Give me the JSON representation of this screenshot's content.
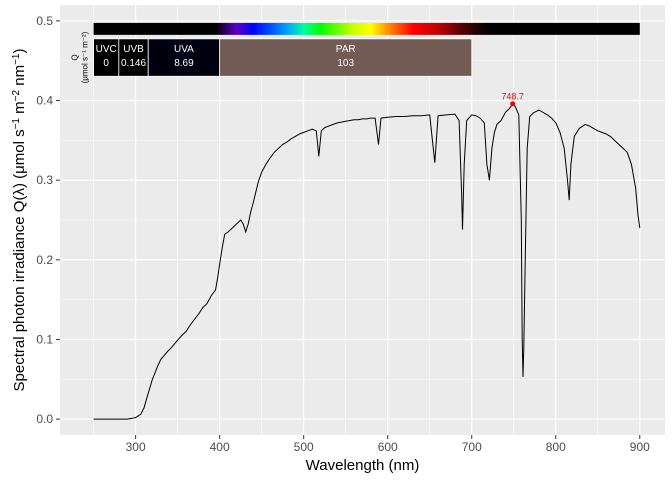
{
  "chart_data": {
    "type": "line",
    "title": "",
    "xlabel": "Wavelength (nm)",
    "ylabel": {
      "main": "Spectral  photon  irradiance  Q(λ)  (μmol s",
      "exp1": "−1",
      "mid": " m",
      "exp2": "−2",
      "mid2": " nm",
      "exp3": "−1",
      "close": ")"
    },
    "xlim": [
      210,
      930
    ],
    "ylim": [
      -0.02,
      0.52
    ],
    "x_ticks": [
      {
        "value": 300,
        "label": "300"
      },
      {
        "value": 400,
        "label": "400"
      },
      {
        "value": 500,
        "label": "500"
      },
      {
        "value": 600,
        "label": "600"
      },
      {
        "value": 700,
        "label": "700"
      },
      {
        "value": 800,
        "label": "800"
      },
      {
        "value": 900,
        "label": "900"
      }
    ],
    "y_ticks": [
      {
        "value": 0.0,
        "label": "0.0"
      },
      {
        "value": 0.1,
        "label": "0.1"
      },
      {
        "value": 0.2,
        "label": "0.2"
      },
      {
        "value": 0.3,
        "label": "0.3"
      },
      {
        "value": 0.4,
        "label": "0.4"
      },
      {
        "value": 0.5,
        "label": "0.5"
      }
    ],
    "grid": true,
    "legend": "none",
    "series": [
      {
        "color": "#000000",
        "points": [
          [
            250,
            0.0
          ],
          [
            260,
            0.0
          ],
          [
            270,
            0.0
          ],
          [
            280,
            0.0
          ],
          [
            290,
            0.0
          ],
          [
            296,
            0.001
          ],
          [
            300,
            0.002
          ],
          [
            303,
            0.004
          ],
          [
            306,
            0.006
          ],
          [
            310,
            0.014
          ],
          [
            313,
            0.025
          ],
          [
            316,
            0.036
          ],
          [
            320,
            0.05
          ],
          [
            323,
            0.058
          ],
          [
            326,
            0.066
          ],
          [
            330,
            0.075
          ],
          [
            334,
            0.08
          ],
          [
            338,
            0.085
          ],
          [
            342,
            0.089
          ],
          [
            346,
            0.094
          ],
          [
            350,
            0.099
          ],
          [
            355,
            0.105
          ],
          [
            360,
            0.11
          ],
          [
            365,
            0.118
          ],
          [
            370,
            0.125
          ],
          [
            375,
            0.132
          ],
          [
            380,
            0.14
          ],
          [
            385,
            0.145
          ],
          [
            390,
            0.155
          ],
          [
            395,
            0.162
          ],
          [
            398,
            0.18
          ],
          [
            400,
            0.195
          ],
          [
            403,
            0.215
          ],
          [
            406,
            0.232
          ],
          [
            410,
            0.235
          ],
          [
            415,
            0.24
          ],
          [
            420,
            0.245
          ],
          [
            425,
            0.25
          ],
          [
            428,
            0.245
          ],
          [
            431,
            0.235
          ],
          [
            434,
            0.245
          ],
          [
            437,
            0.26
          ],
          [
            440,
            0.272
          ],
          [
            443,
            0.285
          ],
          [
            446,
            0.298
          ],
          [
            450,
            0.31
          ],
          [
            455,
            0.32
          ],
          [
            460,
            0.328
          ],
          [
            465,
            0.335
          ],
          [
            470,
            0.34
          ],
          [
            475,
            0.345
          ],
          [
            480,
            0.348
          ],
          [
            485,
            0.352
          ],
          [
            490,
            0.355
          ],
          [
            495,
            0.358
          ],
          [
            500,
            0.36
          ],
          [
            505,
            0.362
          ],
          [
            510,
            0.364
          ],
          [
            515,
            0.362
          ],
          [
            518,
            0.33
          ],
          [
            521,
            0.362
          ],
          [
            525,
            0.366
          ],
          [
            530,
            0.368
          ],
          [
            535,
            0.37
          ],
          [
            540,
            0.372
          ],
          [
            545,
            0.373
          ],
          [
            550,
            0.374
          ],
          [
            555,
            0.375
          ],
          [
            560,
            0.376
          ],
          [
            565,
            0.376
          ],
          [
            570,
            0.377
          ],
          [
            575,
            0.377
          ],
          [
            580,
            0.378
          ],
          [
            585,
            0.378
          ],
          [
            589,
            0.345
          ],
          [
            592,
            0.378
          ],
          [
            600,
            0.379
          ],
          [
            610,
            0.38
          ],
          [
            620,
            0.38
          ],
          [
            630,
            0.381
          ],
          [
            640,
            0.381
          ],
          [
            650,
            0.382
          ],
          [
            656,
            0.322
          ],
          [
            660,
            0.381
          ],
          [
            670,
            0.382
          ],
          [
            680,
            0.383
          ],
          [
            685,
            0.375
          ],
          [
            688,
            0.28
          ],
          [
            689,
            0.238
          ],
          [
            691,
            0.32
          ],
          [
            694,
            0.375
          ],
          [
            700,
            0.382
          ],
          [
            705,
            0.381
          ],
          [
            710,
            0.378
          ],
          [
            715,
            0.372
          ],
          [
            718,
            0.32
          ],
          [
            721,
            0.3
          ],
          [
            724,
            0.34
          ],
          [
            727,
            0.36
          ],
          [
            730,
            0.37
          ],
          [
            735,
            0.375
          ],
          [
            740,
            0.385
          ],
          [
            745,
            0.39
          ],
          [
            748.7,
            0.396
          ],
          [
            752,
            0.392
          ],
          [
            756,
            0.382
          ],
          [
            759,
            0.25
          ],
          [
            760,
            0.1
          ],
          [
            761,
            0.053
          ],
          [
            762,
            0.09
          ],
          [
            764,
            0.22
          ],
          [
            766,
            0.34
          ],
          [
            769,
            0.38
          ],
          [
            774,
            0.385
          ],
          [
            780,
            0.388
          ],
          [
            785,
            0.385
          ],
          [
            790,
            0.382
          ],
          [
            795,
            0.378
          ],
          [
            800,
            0.372
          ],
          [
            805,
            0.36
          ],
          [
            810,
            0.34
          ],
          [
            814,
            0.3
          ],
          [
            816,
            0.275
          ],
          [
            818,
            0.32
          ],
          [
            822,
            0.355
          ],
          [
            828,
            0.365
          ],
          [
            835,
            0.37
          ],
          [
            840,
            0.368
          ],
          [
            845,
            0.365
          ],
          [
            850,
            0.362
          ],
          [
            855,
            0.36
          ],
          [
            860,
            0.358
          ],
          [
            865,
            0.355
          ],
          [
            870,
            0.35
          ],
          [
            875,
            0.345
          ],
          [
            880,
            0.34
          ],
          [
            885,
            0.335
          ],
          [
            890,
            0.32
          ],
          [
            895,
            0.29
          ],
          [
            898,
            0.255
          ],
          [
            900,
            0.24
          ]
        ]
      }
    ],
    "annotations": {
      "peak": {
        "x": 748.7,
        "y": 0.396,
        "label": "748.7",
        "color": "#ff0000"
      },
      "spectrum_bar": {
        "x_start": 250,
        "x_end": 900,
        "color_stops": [
          {
            "nm": 250,
            "color": "#000000"
          },
          {
            "nm": 395,
            "color": "#000000"
          },
          {
            "nm": 420,
            "color": "#5a00c8"
          },
          {
            "nm": 440,
            "color": "#0000ff"
          },
          {
            "nm": 480,
            "color": "#00a0ff"
          },
          {
            "nm": 500,
            "color": "#00ffa0"
          },
          {
            "nm": 520,
            "color": "#00ff00"
          },
          {
            "nm": 560,
            "color": "#d0ff00"
          },
          {
            "nm": 580,
            "color": "#ffff00"
          },
          {
            "nm": 600,
            "color": "#ff9000"
          },
          {
            "nm": 630,
            "color": "#ff0000"
          },
          {
            "nm": 660,
            "color": "#c00000"
          },
          {
            "nm": 690,
            "color": "#500000"
          },
          {
            "nm": 720,
            "color": "#000000"
          },
          {
            "nm": 900,
            "color": "#000000"
          }
        ]
      },
      "q_label": {
        "main": "Q",
        "units": "(μmol s⁻¹ m⁻²)"
      },
      "bands": [
        {
          "name": "UVC",
          "value": "0",
          "x_start": 250,
          "x_end": 280,
          "color": "#000000"
        },
        {
          "name": "UVB",
          "value": "0.146",
          "x_start": 280,
          "x_end": 315,
          "color": "#000000"
        },
        {
          "name": "UVA",
          "value": "8.69",
          "x_start": 315,
          "x_end": 400,
          "color": "#000010"
        },
        {
          "name": "PAR",
          "value": "103",
          "x_start": 400,
          "x_end": 700,
          "color": "#735b55"
        }
      ]
    }
  }
}
